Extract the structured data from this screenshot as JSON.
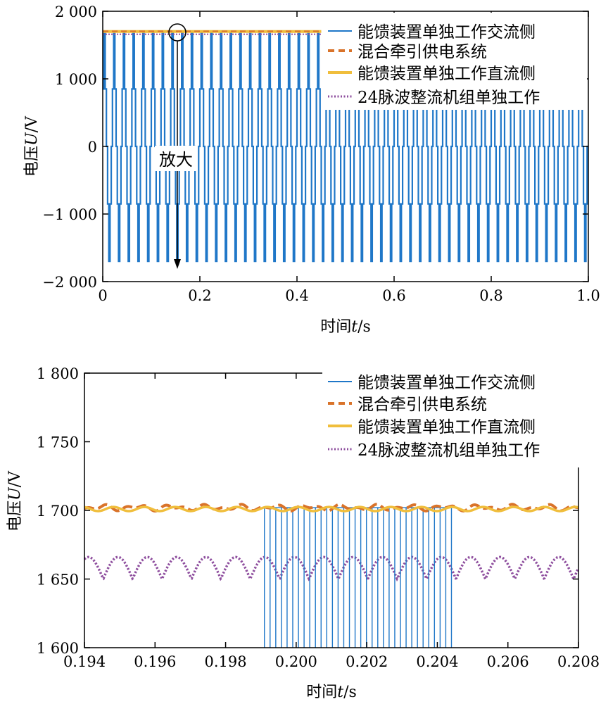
{
  "colors": {
    "ac": "#1f77c8",
    "mixed": "#d9732a",
    "dc": "#f0be3c",
    "rect24": "#8e4e9e"
  },
  "legend_labels": [
    "能馈装置单独工作交流侧",
    "混合牵引供电系统",
    "能馈装置单独工作直流侧",
    "24脉波整流机组单独工作"
  ],
  "annotation": {
    "zoom_label": "放大"
  },
  "chart_data": [
    {
      "type": "line",
      "xlabel_main": "时间",
      "xlabel_var": "t",
      "xlabel_unit": "/s",
      "ylabel_main": "电压",
      "ylabel_var": "U",
      "ylabel_unit": "/V",
      "xlim": [
        0,
        1.0
      ],
      "ylim": [
        -2000,
        2000
      ],
      "x_ticks": [
        0,
        0.2,
        0.4,
        0.6,
        0.8,
        1.0
      ],
      "x_tick_labels": [
        "0",
        "0.2",
        "0.4",
        "0.6",
        "0.8",
        "1.0"
      ],
      "y_ticks": [
        -2000,
        -1000,
        0,
        1000,
        2000
      ],
      "y_tick_labels": [
        "−2 000",
        "−1 000",
        "0",
        "1 000",
        "2 000"
      ],
      "legend_position": "top-right",
      "series": [
        {
          "name": "能馈装置单独工作交流侧",
          "style": "square-wave",
          "pulse_period": 0.02,
          "amplitude_high": 1700,
          "amplitude_mid": 850,
          "x_range": [
            0,
            1.0
          ]
        },
        {
          "name": "混合牵引供电系统",
          "x": [
            0,
            0.45
          ],
          "y": [
            1705,
            1705
          ]
        },
        {
          "name": "能馈装置单独工作直流侧",
          "x": [
            0,
            0.45
          ],
          "y": [
            1700,
            1700
          ]
        },
        {
          "name": "24脉波整流机组单独工作",
          "x": [
            0,
            0.45
          ],
          "y": [
            1660,
            1660
          ]
        }
      ],
      "zoom_marker": {
        "x": 0.155,
        "y": 1700,
        "arrow_to_y": -1800
      }
    },
    {
      "type": "line",
      "xlabel_main": "时间",
      "xlabel_var": "t",
      "xlabel_unit": "/s",
      "ylabel_main": "电压",
      "ylabel_var": "U",
      "ylabel_unit": "/V",
      "xlim": [
        0.194,
        0.208
      ],
      "ylim": [
        1600,
        1800
      ],
      "x_ticks": [
        0.194,
        0.196,
        0.198,
        0.2,
        0.202,
        0.204,
        0.206,
        0.208
      ],
      "x_tick_labels": [
        "0.194",
        "0.196",
        "0.198",
        "0.200",
        "0.202",
        "0.204",
        "0.206",
        "0.208"
      ],
      "y_ticks": [
        1600,
        1650,
        1700,
        1750,
        1800
      ],
      "y_tick_labels": [
        "1 600",
        "1 650",
        "1 700",
        "1 750",
        "1 800"
      ],
      "legend_position": "top-right",
      "series": [
        {
          "name": "能馈装置单独工作交流侧",
          "style": "switching-pulses",
          "x_start": 0.1991,
          "x_end": 0.2044,
          "pulse_count": 34,
          "high": 1702,
          "low": 1600
        },
        {
          "name": "混合牵引供电系统",
          "base": 1702,
          "ripple": 2.5,
          "x_range": [
            0.194,
            0.208
          ]
        },
        {
          "name": "能馈装置单独工作直流侧",
          "base": 1701,
          "ripple": 1.5,
          "x_range": [
            0.194,
            0.208
          ]
        },
        {
          "name": "24脉波整流机组单独工作",
          "min": 1650,
          "max": 1666,
          "ripple_period": 0.000833,
          "x_range": [
            0.194,
            0.208
          ]
        }
      ]
    }
  ]
}
